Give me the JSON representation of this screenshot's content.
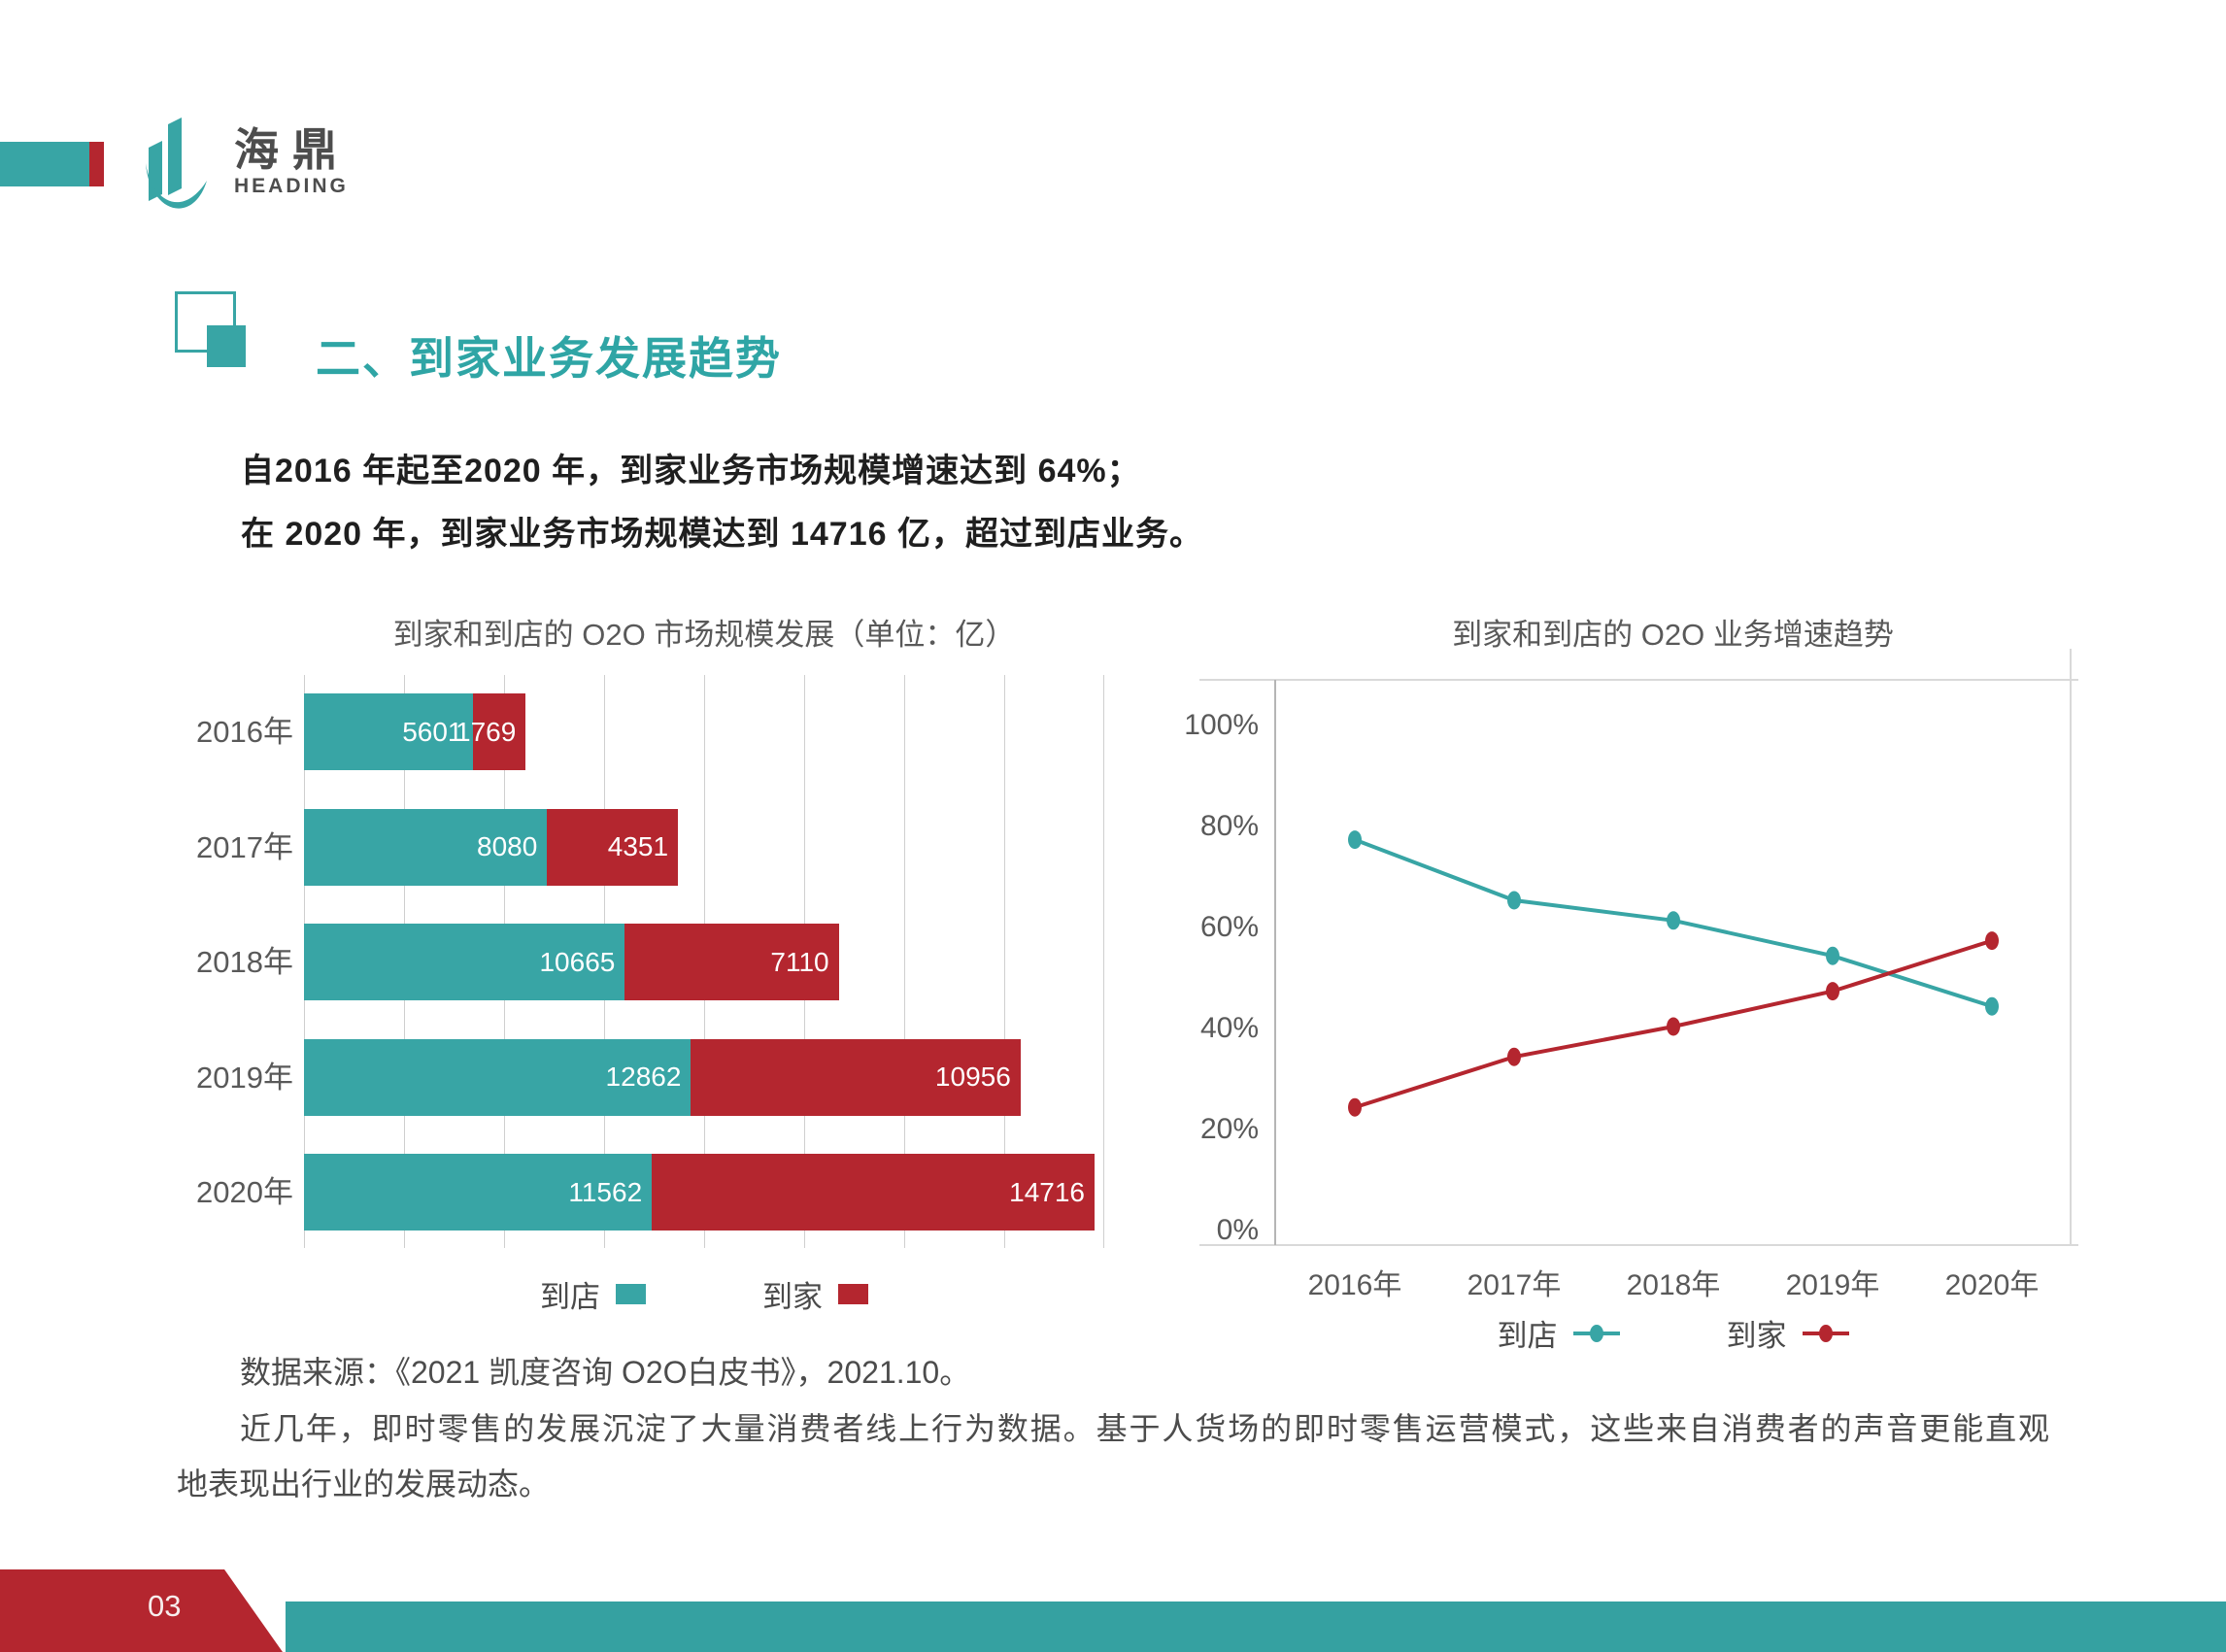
{
  "brand": {
    "logo_cn": "海鼎",
    "logo_en": "HEADING"
  },
  "colors": {
    "teal": "#38A5A5",
    "red": "#B4262F",
    "footer_teal": "#35A1A1",
    "title_teal": "#2FA5A5",
    "grid": "#CFCFCF",
    "axis": "#B5B5B5",
    "border": "#D9D9D9",
    "chart_text": "#595959",
    "body_text": "#1F1F1F",
    "secondary_text": "#4C4C4C"
  },
  "header": {
    "title": "二、到家业务发展趋势"
  },
  "intro": {
    "line1": "自2016 年起至2020 年，到家业务市场规模增速达到 64%；",
    "line2": "在 2020 年，到家业务市场规模达到 14716 亿，超过到店业务。"
  },
  "chart_data": [
    {
      "type": "bar",
      "orientation": "horizontal",
      "stacked": true,
      "title": "到家和到店的 O2O 市场规模发展（单位：亿）",
      "categories": [
        "2016年",
        "2017年",
        "2018年",
        "2019年",
        "2020年"
      ],
      "series": [
        {
          "name": "到店",
          "color_key": "teal",
          "values": [
            5601,
            8080,
            10665,
            12862,
            11562
          ]
        },
        {
          "name": "到家",
          "color_key": "red",
          "values": [
            1769,
            4351,
            7110,
            10956,
            14716
          ]
        }
      ],
      "xlim": [
        0,
        26600
      ],
      "gridlines": 9,
      "unit": "亿",
      "grid": true,
      "legend_position": "bottom"
    },
    {
      "type": "line",
      "title": "到家和到店的 O2O 业务增速趋势",
      "categories": [
        "2016年",
        "2017年",
        "2018年",
        "2019年",
        "2020年"
      ],
      "series": [
        {
          "name": "到店",
          "color_key": "teal",
          "values": [
            77,
            65,
            61,
            54,
            44
          ]
        },
        {
          "name": "到家",
          "color_key": "red",
          "values": [
            24,
            34,
            40,
            47,
            57
          ]
        }
      ],
      "ylim": [
        0,
        100
      ],
      "ytick_labels": [
        "100%",
        "80%",
        "60%",
        "40%",
        "20%",
        "0%"
      ],
      "unit": "%",
      "grid": false,
      "legend_position": "bottom"
    }
  ],
  "source_note": "数据来源：《2021 凯度咨询 O2O白皮书》，2021.10。",
  "paragraph": {
    "line1": "近几年，即时零售的发展沉淀了大量消费者线上行为数据。基于人货场的即时零售运营模式，这些来自消费者的声音更能直观",
    "line2": "地表现出行业的发展动态。"
  },
  "footer": {
    "page_number": "03"
  }
}
